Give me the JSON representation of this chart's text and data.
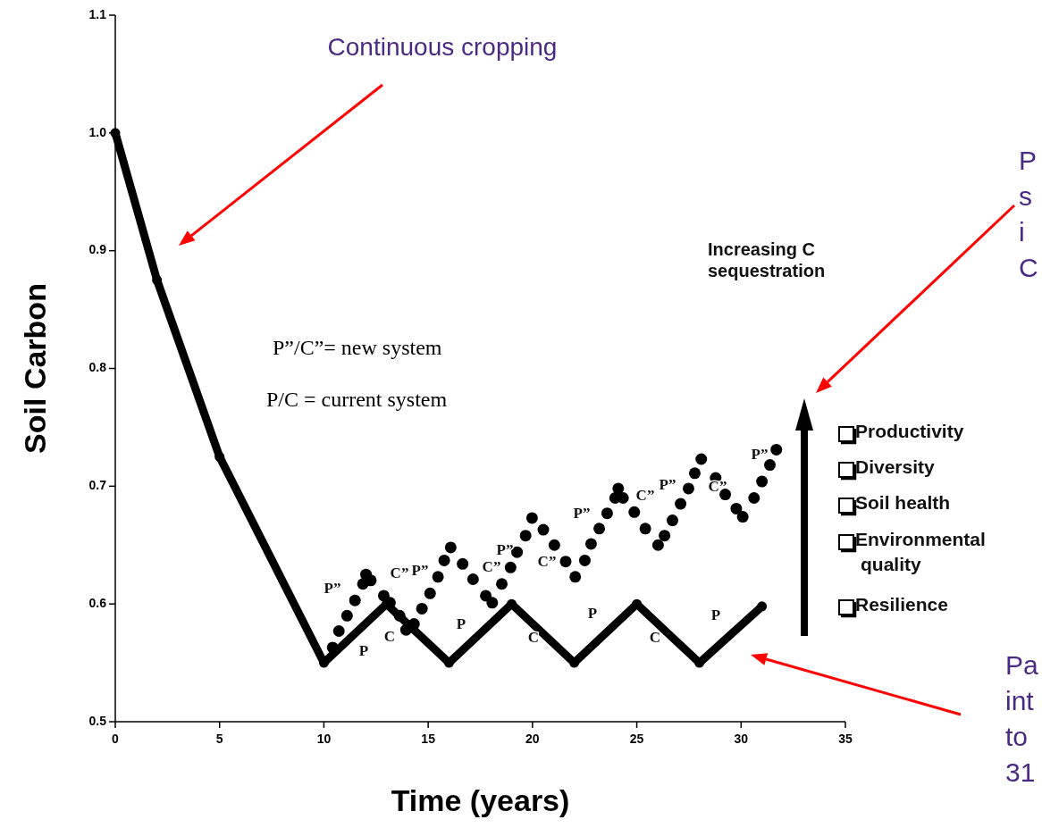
{
  "chart_data": {
    "type": "line",
    "xlabel": "Time (years)",
    "ylabel": "Soil Carbon",
    "xlim": [
      0,
      35
    ],
    "ylim": [
      0.5,
      1.1
    ],
    "xticks": [
      0,
      5,
      10,
      15,
      20,
      25,
      30,
      35
    ],
    "yticks": [
      0.5,
      0.6,
      0.7,
      0.8,
      0.9,
      {
        "value": 1.0,
        "label": "1.0"
      },
      1.1
    ],
    "series": [
      {
        "color": "#000000",
        "marker": "circle",
        "x": [
          0,
          2,
          5,
          10,
          13,
          16,
          19,
          22,
          25,
          28,
          31
        ],
        "values": [
          1.0,
          0.875,
          0.725,
          0.55,
          0.6,
          0.55,
          0.6,
          0.55,
          0.6,
          0.55,
          0.598
        ]
      },
      {
        "type": "scatter",
        "color": "#000000",
        "marker": "circle",
        "x": [
          10.42,
          10.72,
          11.11,
          11.49,
          11.87,
          12.02,
          12.25,
          12.87,
          13.17,
          13.63,
          13.94,
          14.32,
          14.7,
          15.09,
          15.47,
          15.77,
          16.08,
          16.65,
          17.15,
          17.76,
          18.07,
          18.53,
          18.95,
          19.26,
          19.67,
          19.98,
          20.52,
          21.05,
          21.59,
          22.05,
          22.51,
          22.81,
          23.2,
          23.58,
          23.96,
          24.11,
          24.34,
          24.88,
          25.41,
          26.02,
          26.33,
          26.71,
          27.1,
          27.48,
          27.78,
          28.09,
          28.78,
          29.24,
          29.77,
          30.08,
          30.62,
          31.0,
          31.38,
          31.69
        ],
        "values": [
          0.563,
          0.577,
          0.59,
          0.603,
          0.617,
          0.625,
          0.62,
          0.607,
          0.601,
          0.59,
          0.578,
          0.583,
          0.596,
          0.609,
          0.623,
          0.637,
          0.648,
          0.634,
          0.621,
          0.607,
          0.601,
          0.617,
          0.631,
          0.644,
          0.658,
          0.673,
          0.663,
          0.65,
          0.636,
          0.623,
          0.637,
          0.651,
          0.664,
          0.677,
          0.69,
          0.698,
          0.69,
          0.678,
          0.664,
          0.65,
          0.658,
          0.671,
          0.685,
          0.698,
          0.711,
          0.723,
          0.707,
          0.693,
          0.681,
          0.674,
          0.69,
          0.704,
          0.718,
          0.731
        ]
      }
    ],
    "annotations": [
      "Continuous cropping",
      "P”/C”= new system",
      "P/C = current system",
      "Increasing C sequestration",
      "Productivity",
      "Diversity",
      "Soil health",
      "Environmental quality",
      "Resilience",
      "P s i C",
      "Pa int to 31",
      "P",
      "C",
      "P",
      "C",
      "P",
      "C",
      "P",
      "P”",
      "C”",
      "P”",
      "C”",
      "P”",
      "C”",
      "P”",
      "C”",
      "P”",
      "C”",
      "P”"
    ]
  }
}
